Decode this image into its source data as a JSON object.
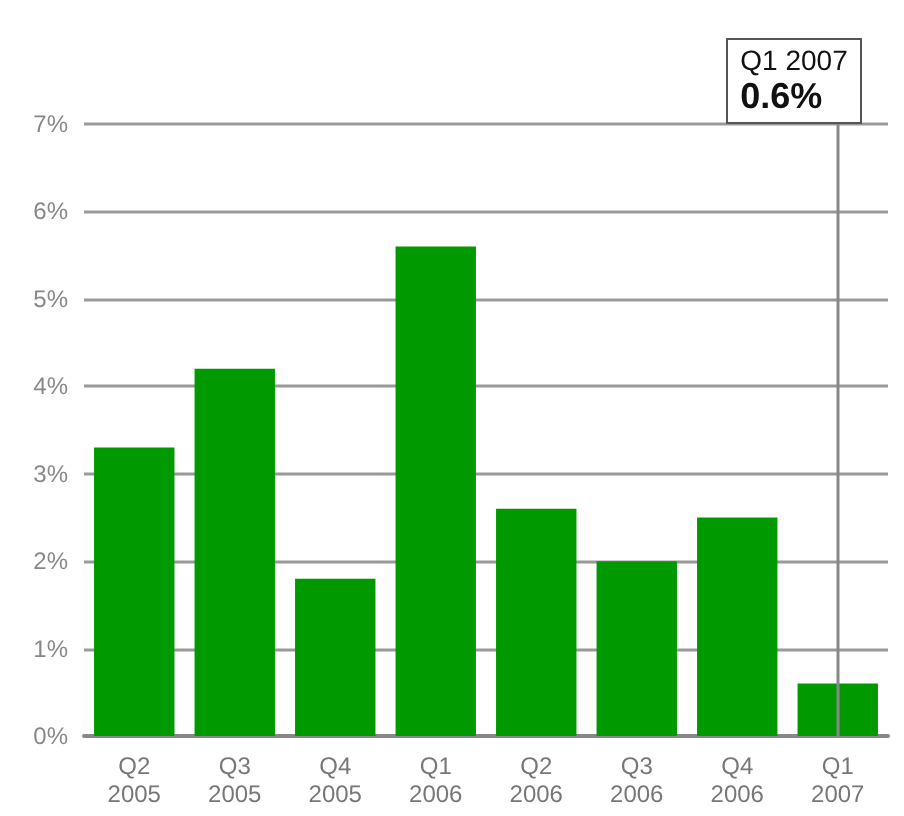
{
  "chart_data": {
    "type": "bar",
    "categories": [
      "Q2 2005",
      "Q3 2005",
      "Q4 2005",
      "Q1 2006",
      "Q2 2006",
      "Q3 2006",
      "Q4 2006",
      "Q1 2007"
    ],
    "values": [
      3.3,
      4.2,
      1.8,
      5.6,
      2.6,
      2.0,
      2.5,
      0.6
    ],
    "color": "#009900",
    "ylim": [
      0,
      7
    ],
    "yticks": [
      {
        "value": 0,
        "label": "0%"
      },
      {
        "value": 1,
        "label": "1%"
      },
      {
        "value": 2,
        "label": "2%"
      },
      {
        "value": 3,
        "label": "3%"
      },
      {
        "value": 4,
        "label": "4%"
      },
      {
        "value": 5,
        "label": "5%"
      },
      {
        "value": 6,
        "label": "6%"
      },
      {
        "value": 7,
        "label": "7%"
      }
    ],
    "grid": "y",
    "ref_lines": [
      {
        "axis": "x",
        "value": "Q1 2007",
        "color": "#888888"
      }
    ],
    "annotations": [
      "Q1 2007",
      "0.6%"
    ]
  }
}
